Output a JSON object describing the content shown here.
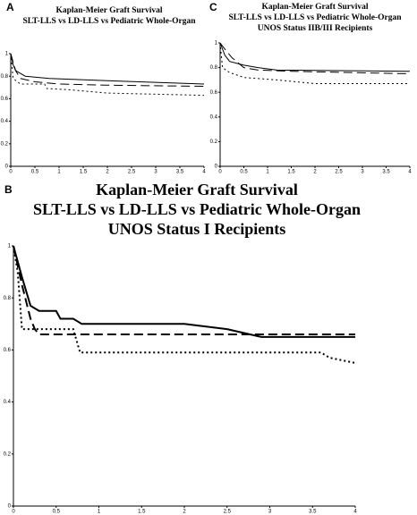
{
  "chart_data": [
    {
      "type": "line",
      "panel": "A",
      "title": [
        "Kaplan-Meier Graft Survival",
        "SLT-LLS vs LD-LLS vs Pediatric Whole-Organ"
      ],
      "xlim": [
        0,
        4
      ],
      "xticks": [
        0,
        0.5,
        1,
        1.5,
        2,
        2.5,
        3,
        3.5,
        4
      ],
      "ylim": [
        0,
        1
      ],
      "yticks": [
        0,
        0.2,
        0.4,
        0.6,
        0.8,
        1
      ],
      "series": [
        {
          "color": "#000000",
          "dash": "solid",
          "x": [
            0,
            0.05,
            0.1,
            0.3,
            0.8,
            2,
            4
          ],
          "values": [
            1,
            0.9,
            0.85,
            0.8,
            0.78,
            0.76,
            0.73
          ]
        },
        {
          "color": "#000000",
          "dash": "dashed",
          "x": [
            0,
            0.1,
            0.2,
            0.5,
            1,
            2,
            4
          ],
          "values": [
            1,
            0.85,
            0.78,
            0.75,
            0.73,
            0.72,
            0.71
          ]
        },
        {
          "color": "#000000",
          "dash": "dotted",
          "x": [
            0,
            0.05,
            0.2,
            0.7,
            0.75,
            1.2,
            2,
            4
          ],
          "values": [
            1,
            0.78,
            0.73,
            0.73,
            0.69,
            0.68,
            0.65,
            0.63
          ]
        }
      ]
    },
    {
      "type": "line",
      "panel": "B",
      "title": [
        "Kaplan-Meier Graft Survival",
        "SLT-LLS vs LD-LLS vs Pediatric Whole-Organ",
        "UNOS Status I Recipients"
      ],
      "xlim": [
        0,
        4
      ],
      "xticks": [
        0,
        0.5,
        1,
        1.5,
        2,
        2.5,
        3,
        3.5,
        4
      ],
      "ylim": [
        0,
        1
      ],
      "yticks": [
        0,
        0.2,
        0.4,
        0.6,
        0.8,
        1
      ],
      "series": [
        {
          "color": "#000000",
          "dash": "solid",
          "x": [
            0,
            0.1,
            0.2,
            0.3,
            0.5,
            0.55,
            0.7,
            0.8,
            2,
            2.5,
            2.9,
            4
          ],
          "values": [
            1,
            0.88,
            0.77,
            0.75,
            0.75,
            0.72,
            0.72,
            0.7,
            0.7,
            0.68,
            0.65,
            0.65
          ]
        },
        {
          "color": "#000000",
          "dash": "dashed",
          "x": [
            0,
            0.1,
            0.2,
            0.25,
            0.3,
            4
          ],
          "values": [
            1,
            0.85,
            0.72,
            0.68,
            0.66,
            0.66
          ]
        },
        {
          "color": "#000000",
          "dash": "dotted",
          "x": [
            0,
            0.05,
            0.1,
            0.3,
            0.7,
            0.78,
            3.6,
            3.7,
            4
          ],
          "values": [
            1,
            0.9,
            0.68,
            0.68,
            0.68,
            0.59,
            0.59,
            0.57,
            0.55
          ]
        }
      ]
    },
    {
      "type": "line",
      "panel": "C",
      "title": [
        "Kaplan-Meier Graft Survival",
        "SLT-LLS vs LD-LLS vs Pediatric Whole-Organ",
        "UNOS Status IIB/III Recipients"
      ],
      "xlim": [
        0,
        4
      ],
      "xticks": [
        0,
        0.5,
        1,
        1.5,
        2,
        2.5,
        3,
        3.5,
        4
      ],
      "ylim": [
        0,
        1
      ],
      "yticks": [
        0,
        0.2,
        0.4,
        0.6,
        0.8,
        1
      ],
      "series": [
        {
          "color": "#000000",
          "dash": "solid",
          "x": [
            0,
            0.1,
            0.2,
            0.5,
            0.8,
            1.2,
            4
          ],
          "values": [
            1,
            0.9,
            0.85,
            0.82,
            0.8,
            0.78,
            0.77
          ]
        },
        {
          "color": "#000000",
          "dash": "dashed",
          "x": [
            0,
            0.1,
            0.25,
            0.5,
            0.8,
            1.5,
            4
          ],
          "values": [
            1,
            0.95,
            0.88,
            0.8,
            0.78,
            0.77,
            0.75
          ]
        },
        {
          "color": "#000000",
          "dash": "dotted",
          "x": [
            0,
            0.05,
            0.2,
            0.5,
            1.2,
            2,
            4
          ],
          "values": [
            1,
            0.8,
            0.76,
            0.72,
            0.7,
            0.67,
            0.67
          ]
        }
      ]
    }
  ]
}
